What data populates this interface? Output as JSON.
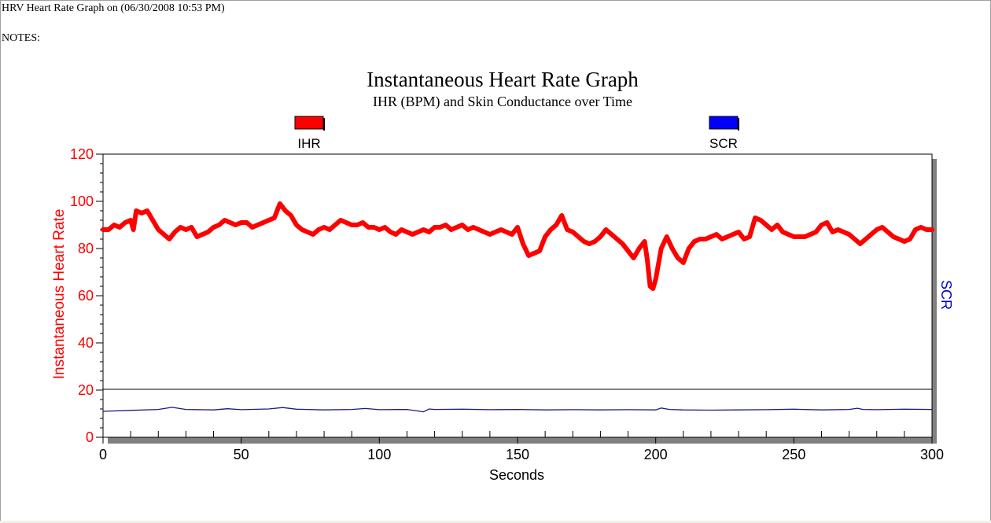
{
  "window": {
    "title": "HRV Heart Rate Graph on (06/30/2008 10:53 PM)",
    "notes_label": "NOTES:"
  },
  "colors": {
    "ihr": "#ff0000",
    "scr": "#0000cc",
    "scr_line": "#1a1a80",
    "axis": "#000000"
  },
  "chart_data": {
    "type": "line",
    "title": "Instantaneous Heart Rate Graph",
    "subtitle": "IHR (BPM) and Skin Conductance over Time",
    "xlabel": "Seconds",
    "ylabel": "Instantaneous Heart Rate",
    "ylabel_right": "SCR",
    "xlim": [
      0,
      300
    ],
    "ylim": [
      0,
      120
    ],
    "x_ticks": [
      "0",
      "50",
      "100",
      "150",
      "200",
      "250",
      "300"
    ],
    "y_ticks": [
      "0",
      "20",
      "40",
      "60",
      "80",
      "100",
      "120"
    ],
    "legend": [
      "IHR",
      "SCR"
    ],
    "legend_position": "top",
    "series": [
      {
        "name": "IHR",
        "x": [
          0,
          2,
          4,
          6,
          8,
          10,
          11,
          12,
          14,
          16,
          18,
          20,
          22,
          24,
          26,
          28,
          30,
          32,
          34,
          36,
          38,
          40,
          42,
          44,
          46,
          48,
          50,
          52,
          54,
          56,
          58,
          60,
          62,
          64,
          66,
          68,
          70,
          72,
          74,
          76,
          78,
          80,
          82,
          84,
          86,
          88,
          90,
          92,
          94,
          96,
          98,
          100,
          102,
          104,
          106,
          108,
          110,
          112,
          114,
          116,
          118,
          120,
          122,
          124,
          126,
          128,
          130,
          132,
          134,
          136,
          138,
          140,
          142,
          144,
          146,
          148,
          150,
          152,
          154,
          156,
          158,
          160,
          162,
          164,
          166,
          168,
          170,
          172,
          174,
          176,
          178,
          180,
          182,
          184,
          186,
          188,
          190,
          192,
          194,
          196,
          197,
          198,
          199,
          200,
          202,
          204,
          206,
          208,
          210,
          212,
          214,
          216,
          218,
          220,
          222,
          224,
          226,
          228,
          230,
          232,
          234,
          236,
          238,
          240,
          242,
          244,
          246,
          248,
          250,
          252,
          254,
          256,
          258,
          260,
          262,
          264,
          266,
          268,
          270,
          272,
          274,
          276,
          278,
          280,
          282,
          284,
          286,
          288,
          290,
          292,
          294,
          296,
          298,
          300
        ],
        "values": [
          88,
          88,
          90,
          89,
          91,
          92,
          88,
          96,
          95,
          96,
          92,
          88,
          86,
          84,
          87,
          89,
          88,
          89,
          85,
          86,
          87,
          89,
          90,
          92,
          91,
          90,
          91,
          91,
          89,
          90,
          91,
          92,
          93,
          99,
          96,
          94,
          90,
          88,
          87,
          86,
          88,
          89,
          88,
          90,
          92,
          91,
          90,
          90,
          91,
          89,
          89,
          88,
          89,
          87,
          86,
          88,
          87,
          86,
          87,
          88,
          87,
          89,
          89,
          90,
          88,
          89,
          90,
          88,
          89,
          88,
          87,
          86,
          87,
          88,
          87,
          86,
          89,
          82,
          77,
          78,
          79,
          85,
          88,
          90,
          94,
          88,
          87,
          85,
          83,
          82,
          83,
          85,
          88,
          86,
          84,
          82,
          79,
          76,
          80,
          83,
          75,
          64,
          63,
          67,
          80,
          85,
          80,
          76,
          74,
          80,
          83,
          84,
          84,
          85,
          86,
          84,
          85,
          86,
          87,
          84,
          85,
          93,
          92,
          90,
          88,
          90,
          87,
          86,
          85,
          85,
          85,
          86,
          87,
          90,
          91,
          87,
          88,
          87,
          86,
          84,
          82,
          84,
          86,
          88,
          89,
          87,
          85,
          84,
          83,
          84,
          88,
          89,
          88,
          88
        ],
        "color": "#ff0000"
      },
      {
        "name": "SCR",
        "x": [
          0,
          10,
          20,
          25,
          30,
          40,
          45,
          50,
          60,
          65,
          70,
          80,
          90,
          95,
          100,
          110,
          116,
          118,
          120,
          130,
          140,
          150,
          160,
          170,
          180,
          190,
          200,
          202,
          205,
          210,
          220,
          230,
          240,
          250,
          260,
          270,
          273,
          275,
          280,
          290,
          300
        ],
        "values": [
          11.0,
          11.4,
          11.8,
          12.7,
          11.8,
          11.6,
          12.1,
          11.7,
          12.0,
          12.6,
          11.9,
          11.6,
          11.8,
          12.2,
          11.7,
          11.8,
          10.8,
          12.0,
          11.8,
          11.9,
          11.7,
          11.8,
          11.6,
          11.7,
          11.6,
          11.7,
          11.6,
          12.4,
          11.8,
          11.6,
          11.5,
          11.6,
          11.7,
          11.9,
          11.6,
          11.8,
          12.3,
          11.8,
          11.7,
          11.9,
          11.8
        ],
        "color": "#1a1a80"
      }
    ]
  }
}
